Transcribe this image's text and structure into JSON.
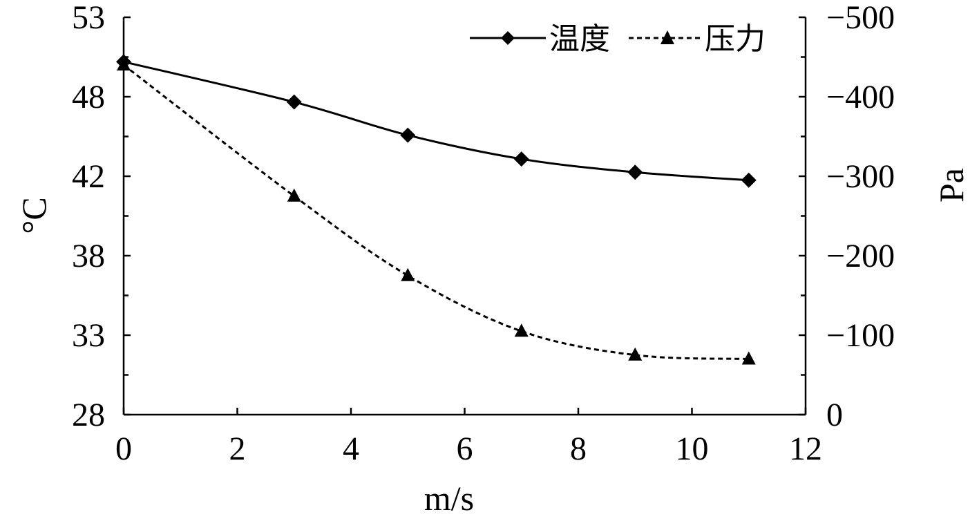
{
  "chart_data": {
    "type": "line",
    "x": [
      0,
      3,
      5,
      7,
      9,
      11
    ],
    "xlabel": "m/s",
    "xlim": [
      0,
      12
    ],
    "xticks": [
      "0",
      "2",
      "4",
      "6",
      "8",
      "10",
      "12"
    ],
    "ylabel": "°C",
    "ylim": [
      28,
      53
    ],
    "yticks": [
      "28",
      "33",
      "38",
      "42",
      "48",
      "53"
    ],
    "y2label": "Pa",
    "y2lim": [
      0,
      -500
    ],
    "y2ticks": [
      "0",
      "−100",
      "−200",
      "−300",
      "−400",
      "−500"
    ],
    "grid": false,
    "legend_position": "top-right",
    "series": [
      {
        "name": "温度",
        "axis": "left",
        "marker": "diamond",
        "line_style": "solid",
        "color": "#000000",
        "values": [
          50.2,
          47.6,
          45.1,
          43.3,
          42.3,
          41.8
        ]
      },
      {
        "name": "压力",
        "axis": "right",
        "marker": "triangle",
        "line_style": "dashed",
        "color": "#000000",
        "values": [
          -440,
          -275,
          -175,
          -105,
          -75,
          -70
        ]
      }
    ]
  }
}
